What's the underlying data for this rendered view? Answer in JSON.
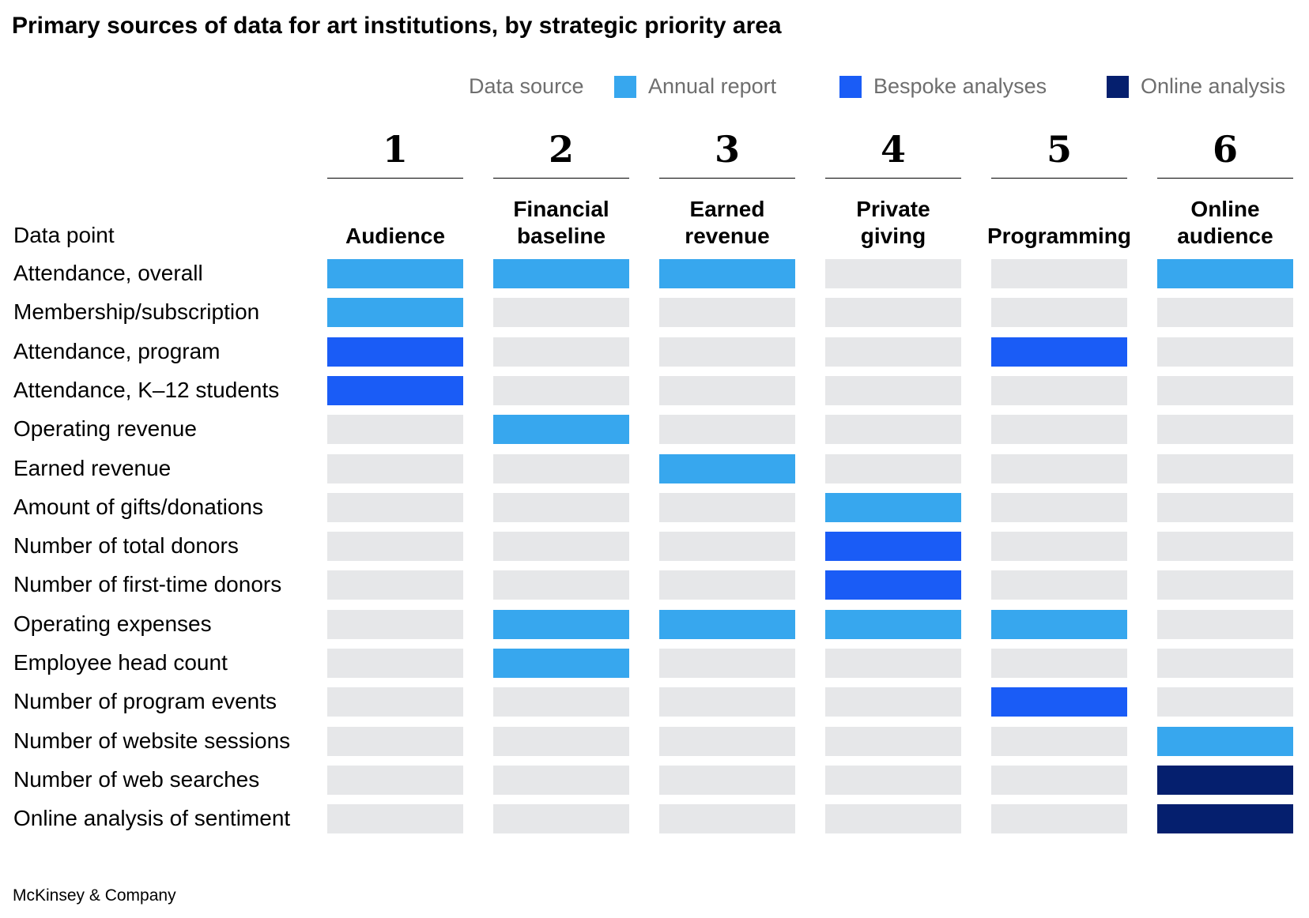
{
  "title": "Primary sources of data for art institutions, by strategic priority area",
  "legend": {
    "label": "Data source",
    "items": [
      {
        "name": "Annual report",
        "color": "#37a7ee"
      },
      {
        "name": "Bespoke analyses",
        "color": "#1a5cf6"
      },
      {
        "name": "Online analysis",
        "color": "#051f6e"
      }
    ]
  },
  "empty_color": "#e6e7e9",
  "row_header": "Data point",
  "columns": [
    {
      "number": "1",
      "name_lines": [
        "Audience"
      ]
    },
    {
      "number": "2",
      "name_lines": [
        "Financial",
        "baseline"
      ]
    },
    {
      "number": "3",
      "name_lines": [
        "Earned",
        "revenue"
      ]
    },
    {
      "number": "4",
      "name_lines": [
        "Private",
        "giving"
      ]
    },
    {
      "number": "5",
      "name_lines": [
        "Programming"
      ]
    },
    {
      "number": "6",
      "name_lines": [
        "Online",
        "audience"
      ]
    }
  ],
  "chart_data": {
    "type": "table",
    "title": "Primary sources of data for art institutions, by strategic priority area",
    "columns": [
      "Audience",
      "Financial baseline",
      "Earned revenue",
      "Private giving",
      "Programming",
      "Online audience"
    ],
    "rows": [
      {
        "label": "Attendance, overall",
        "cells": [
          "Annual report",
          "Annual report",
          "Annual report",
          null,
          null,
          "Annual report"
        ]
      },
      {
        "label": "Membership/subscription",
        "cells": [
          "Annual report",
          null,
          null,
          null,
          null,
          null
        ]
      },
      {
        "label": "Attendance, program",
        "cells": [
          "Bespoke analyses",
          null,
          null,
          null,
          "Bespoke analyses",
          null
        ]
      },
      {
        "label": "Attendance, K–12 students",
        "cells": [
          "Bespoke analyses",
          null,
          null,
          null,
          null,
          null
        ]
      },
      {
        "label": "Operating revenue",
        "cells": [
          null,
          "Annual report",
          null,
          null,
          null,
          null
        ]
      },
      {
        "label": "Earned revenue",
        "cells": [
          null,
          null,
          "Annual report",
          null,
          null,
          null
        ]
      },
      {
        "label": "Amount of gifts/donations",
        "cells": [
          null,
          null,
          null,
          "Annual report",
          null,
          null
        ]
      },
      {
        "label": "Number of total donors",
        "cells": [
          null,
          null,
          null,
          "Bespoke analyses",
          null,
          null
        ]
      },
      {
        "label": "Number of first-time donors",
        "cells": [
          null,
          null,
          null,
          "Bespoke analyses",
          null,
          null
        ]
      },
      {
        "label": "Operating expenses",
        "cells": [
          null,
          "Annual report",
          "Annual report",
          "Annual report",
          "Annual report",
          null
        ]
      },
      {
        "label": "Employee head count",
        "cells": [
          null,
          "Annual report",
          null,
          null,
          null,
          null
        ]
      },
      {
        "label": "Number of program events",
        "cells": [
          null,
          null,
          null,
          null,
          "Bespoke analyses",
          null
        ]
      },
      {
        "label": "Number of website sessions",
        "cells": [
          null,
          null,
          null,
          null,
          null,
          "Annual report"
        ]
      },
      {
        "label": "Number of web searches",
        "cells": [
          null,
          null,
          null,
          null,
          null,
          "Online analysis"
        ]
      },
      {
        "label": "Online analysis of sentiment",
        "cells": [
          null,
          null,
          null,
          null,
          null,
          "Online analysis"
        ]
      }
    ]
  },
  "source": "McKinsey & Company"
}
